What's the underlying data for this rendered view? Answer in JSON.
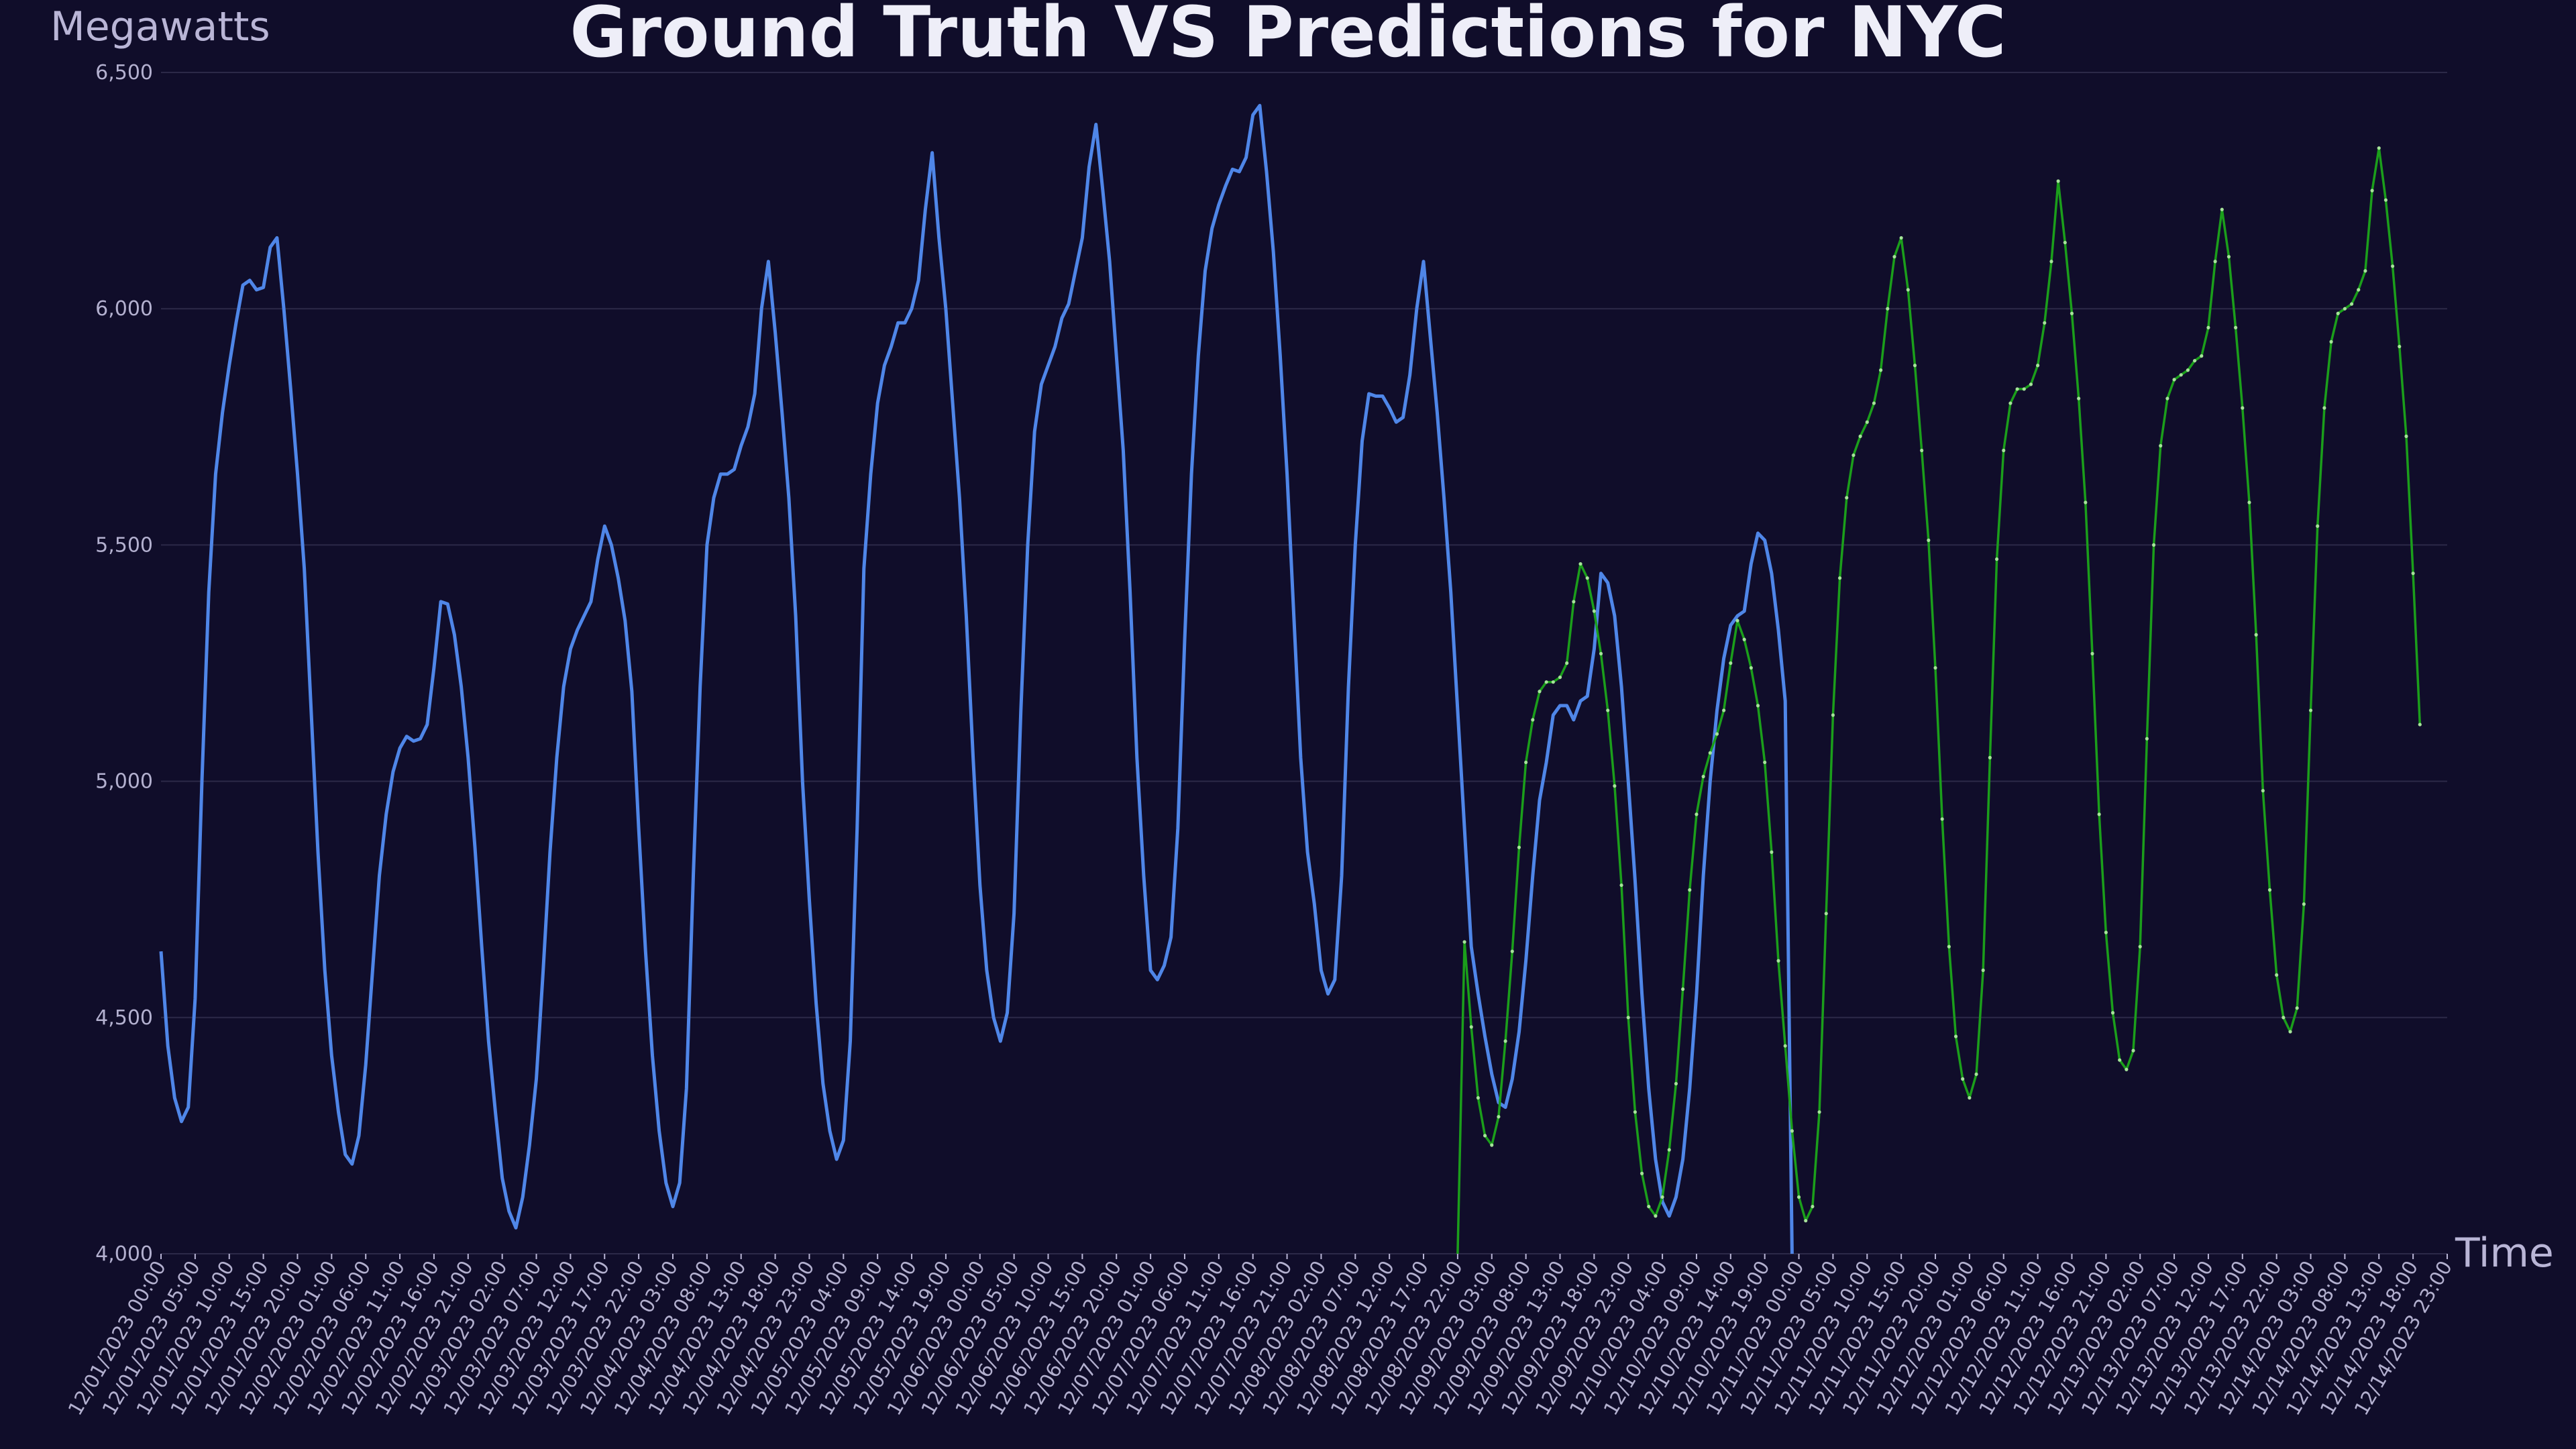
{
  "colors": {
    "background": "#100d2a",
    "grid": "#2c2948",
    "text": "#b9b5d6",
    "title": "#eeeef8",
    "ground_truth": "#4f86e8",
    "predictions": "#1b9e1b",
    "prediction_points": "#a6e39a"
  },
  "chart_data": {
    "type": "line",
    "title": "Ground Truth VS Predictions for NYC",
    "xlabel": "Time",
    "ylabel": "Megawatts",
    "ylim": [
      4000,
      6500
    ],
    "y_ticks": [
      "4,000",
      "4,500",
      "5,000",
      "5,500",
      "6,000",
      "6,500"
    ],
    "x_tick_labels": [
      "12/01/2023 00:00",
      "12/01/2023 05:00",
      "12/01/2023 10:00",
      "12/01/2023 15:00",
      "12/01/2023 20:00",
      "12/02/2023 01:00",
      "12/02/2023 06:00",
      "12/02/2023 11:00",
      "12/02/2023 16:00",
      "12/02/2023 21:00",
      "12/03/2023 02:00",
      "12/03/2023 07:00",
      "12/03/2023 12:00",
      "12/03/2023 17:00",
      "12/03/2023 22:00",
      "12/04/2023 03:00",
      "12/04/2023 08:00",
      "12/04/2023 13:00",
      "12/04/2023 18:00",
      "12/04/2023 23:00",
      "12/05/2023 04:00",
      "12/05/2023 09:00",
      "12/05/2023 14:00",
      "12/05/2023 19:00",
      "12/06/2023 00:00",
      "12/06/2023 05:00",
      "12/06/2023 10:00",
      "12/06/2023 15:00",
      "12/06/2023 20:00",
      "12/07/2023 01:00",
      "12/07/2023 06:00",
      "12/07/2023 11:00",
      "12/07/2023 16:00",
      "12/07/2023 21:00",
      "12/08/2023 02:00",
      "12/08/2023 07:00",
      "12/08/2023 12:00",
      "12/08/2023 17:00",
      "12/08/2023 22:00",
      "12/09/2023 03:00",
      "12/09/2023 08:00",
      "12/09/2023 13:00",
      "12/09/2023 18:00",
      "12/09/2023 23:00",
      "12/10/2023 04:00",
      "12/10/2023 09:00",
      "12/10/2023 14:00",
      "12/10/2023 19:00",
      "12/11/2023 00:00",
      "12/11/2023 05:00",
      "12/11/2023 10:00",
      "12/11/2023 15:00",
      "12/11/2023 20:00",
      "12/12/2023 01:00",
      "12/12/2023 06:00",
      "12/12/2023 11:00",
      "12/12/2023 16:00",
      "12/12/2023 21:00",
      "12/13/2023 02:00",
      "12/13/2023 07:00",
      "12/13/2023 12:00",
      "12/13/2023 17:00",
      "12/13/2023 22:00",
      "12/14/2023 03:00",
      "12/14/2023 08:00",
      "12/14/2023 13:00",
      "12/14/2023 18:00",
      "12/14/2023 23:00"
    ],
    "grid": "horizontal",
    "legend": "none",
    "series": [
      {
        "role": "ground_truth",
        "start": "12/01/2023 00:00",
        "step_hours": 1,
        "values": [
          4640,
          4440,
          4330,
          4280,
          4310,
          4540,
          5000,
          5400,
          5650,
          5780,
          5880,
          5970,
          6050,
          6060,
          6040,
          6045,
          6130,
          6150,
          6000,
          5830,
          5650,
          5450,
          5150,
          4850,
          4600,
          4420,
          4300,
          4210,
          4190,
          4250,
          4400,
          4600,
          4800,
          4930,
          5020,
          5070,
          5095,
          5085,
          5090,
          5120,
          5240,
          5380,
          5375,
          5310,
          5200,
          5050,
          4860,
          4650,
          4450,
          4300,
          4160,
          4090,
          4055,
          4120,
          4230,
          4370,
          4600,
          4850,
          5050,
          5200,
          5280,
          5320,
          5350,
          5380,
          5470,
          5540,
          5500,
          5430,
          5340,
          5190,
          4900,
          4640,
          4420,
          4260,
          4150,
          4100,
          4150,
          4350,
          4800,
          5200,
          5500,
          5600,
          5650,
          5650,
          5660,
          5710,
          5750,
          5820,
          6000,
          6100,
          5950,
          5780,
          5600,
          5350,
          5000,
          4750,
          4530,
          4360,
          4260,
          4200,
          4240,
          4450,
          4900,
          5450,
          5650,
          5800,
          5880,
          5920,
          5970,
          5970,
          6000,
          6060,
          6210,
          6330,
          6150,
          6000,
          5800,
          5600,
          5350,
          5050,
          4780,
          4600,
          4500,
          4450,
          4510,
          4720,
          5150,
          5500,
          5740,
          5840,
          5880,
          5920,
          5980,
          6010,
          6080,
          6150,
          6300,
          6390,
          6250,
          6100,
          5900,
          5700,
          5400,
          5050,
          4800,
          4600,
          4580,
          4610,
          4670,
          4900,
          5300,
          5650,
          5900,
          6080,
          6170,
          6220,
          6260,
          6295,
          6290,
          6320,
          6410,
          6430,
          6290,
          6120,
          5900,
          5650,
          5350,
          5050,
          4850,
          4740,
          4600,
          4550,
          4580,
          4800,
          5200,
          5500,
          5720,
          5820,
          5815,
          5815,
          5790,
          5760,
          5770,
          5860,
          6000,
          6100,
          5940,
          5780,
          5600,
          5400,
          5150,
          4900,
          4650,
          4550,
          4460,
          4380,
          4320,
          4310,
          4370,
          4470,
          4620,
          4800,
          4960,
          5040,
          5140,
          5160,
          5160,
          5130,
          5170,
          5180,
          5280,
          5440,
          5420,
          5350,
          5200,
          5000,
          4790,
          4550,
          4350,
          4200,
          4110,
          4080,
          4120,
          4200,
          4350,
          4550,
          4800,
          5000,
          5150,
          5260,
          5330,
          5350,
          5360,
          5460,
          5525,
          5510,
          5440,
          5320,
          5170,
          4000
        ]
      },
      {
        "role": "predictions",
        "start": "12/08/2023 22:00",
        "step_hours": 1,
        "values": [
          4000,
          4660,
          4480,
          4330,
          4250,
          4230,
          4290,
          4450,
          4640,
          4860,
          5040,
          5130,
          5190,
          5210,
          5210,
          5220,
          5250,
          5380,
          5460,
          5430,
          5360,
          5270,
          5150,
          4990,
          4780,
          4500,
          4300,
          4170,
          4100,
          4080,
          4120,
          4220,
          4360,
          4560,
          4770,
          4930,
          5010,
          5060,
          5100,
          5150,
          5250,
          5340,
          5300,
          5240,
          5160,
          5040,
          4850,
          4620,
          4440,
          4260,
          4120,
          4070,
          4100,
          4300,
          4720,
          5140,
          5430,
          5600,
          5690,
          5730,
          5760,
          5800,
          5870,
          6000,
          6110,
          6150,
          6040,
          5880,
          5700,
          5510,
          5240,
          4920,
          4650,
          4460,
          4370,
          4330,
          4380,
          4600,
          5050,
          5470,
          5700,
          5800,
          5830,
          5830,
          5840,
          5880,
          5970,
          6100,
          6270,
          6140,
          5990,
          5810,
          5590,
          5270,
          4930,
          4680,
          4510,
          4410,
          4390,
          4430,
          4650,
          5090,
          5500,
          5710,
          5810,
          5850,
          5860,
          5870,
          5890,
          5900,
          5960,
          6100,
          6210,
          6110,
          5960,
          5790,
          5590,
          5310,
          4980,
          4770,
          4590,
          4500,
          4470,
          4520,
          4740,
          5150,
          5540,
          5790,
          5930,
          5990,
          6000,
          6010,
          6040,
          6080,
          6250,
          6340,
          6230,
          6090,
          5920,
          5730,
          5440,
          5120
        ]
      }
    ]
  }
}
